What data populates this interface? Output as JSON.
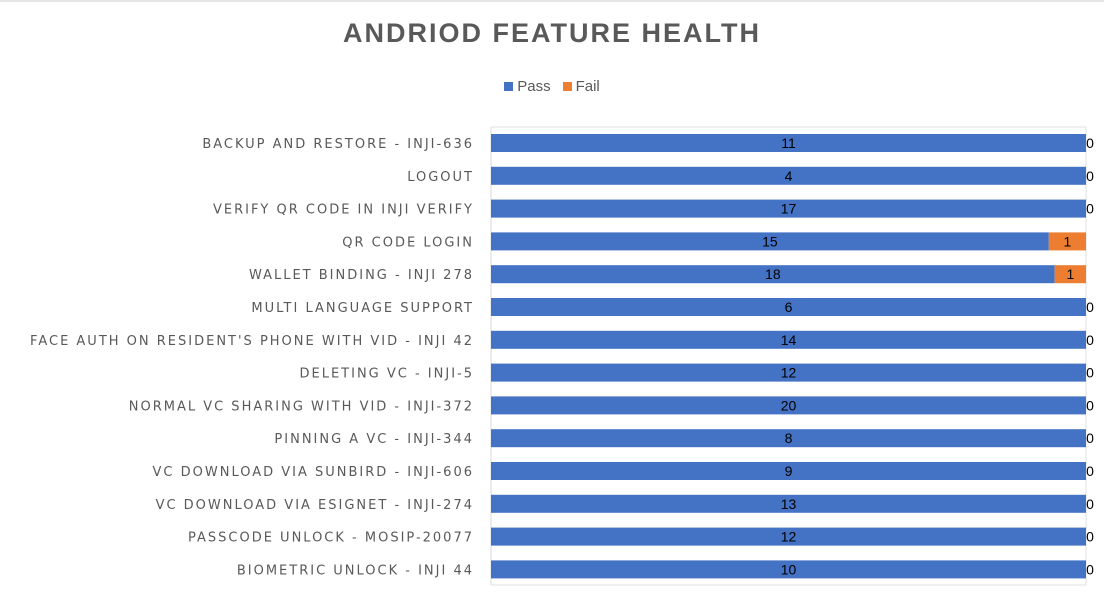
{
  "chart_data": {
    "type": "bar",
    "orientation": "horizontal",
    "stacked": "100%",
    "title": "ANDRIOD FEATURE HEALTH",
    "legend_position": "top",
    "categories": [
      "BACKUP AND RESTORE  - INJI-636",
      "LOGOUT",
      "VERIFY QR CODE IN INJI VERIFY",
      "QR CODE LOGIN",
      "WALLET BINDING - INJI 278",
      "MULTI LANGUAGE SUPPORT",
      "FACE AUTH ON RESIDENT'S PHONE WITH VID - INJI 42",
      "DELETING VC - INJI-5",
      "NORMAL VC SHARING WITH VID - INJI-372",
      "PINNING  A VC - INJI-344",
      "VC DOWNLOAD VIA SUNBIRD - INJI-606",
      "VC DOWNLOAD VIA ESIGNET - INJI-274",
      "PASSCODE UNLOCK - MOSIP-20077",
      "BIOMETRIC UNLOCK - INJI 44"
    ],
    "series": [
      {
        "name": "Pass",
        "color": "#4472c4",
        "values": [
          11,
          4,
          17,
          15,
          18,
          6,
          14,
          12,
          20,
          8,
          9,
          13,
          12,
          10
        ]
      },
      {
        "name": "Fail",
        "color": "#ed7d31",
        "values": [
          0,
          0,
          0,
          1,
          1,
          0,
          0,
          0,
          0,
          0,
          0,
          0,
          0,
          0
        ]
      }
    ]
  }
}
